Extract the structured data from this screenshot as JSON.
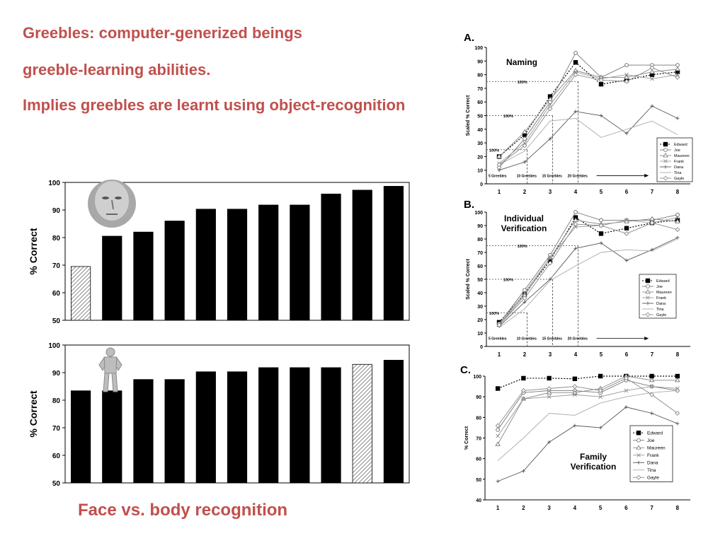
{
  "bullets": [
    "Greebles: computer-generized beings",
    "greeble-learning abilities.",
    "Implies greebles are learnt using object-recognition"
  ],
  "caption": "Face vs. body recognition",
  "colors": {
    "heading": "#c0504d",
    "bar": "#000000",
    "hatch": "#888888"
  },
  "icons": [
    "face-photo",
    "body-figure"
  ],
  "chart_data": [
    {
      "id": "face",
      "type": "bar",
      "ylabel": "% Correct",
      "ylim": [
        50,
        100
      ],
      "yticks": [
        50,
        60,
        70,
        80,
        90,
        100
      ],
      "values": [
        69.5,
        80.5,
        82,
        86,
        90.3,
        90.3,
        91.8,
        91.8,
        95.8,
        97.2,
        98.6
      ],
      "hatched_index": 0
    },
    {
      "id": "body",
      "type": "bar",
      "ylabel": "% Correct",
      "ylim": [
        50,
        100
      ],
      "yticks": [
        50,
        60,
        70,
        80,
        90,
        100
      ],
      "values": [
        83.4,
        83.4,
        87.5,
        87.5,
        90.3,
        90.3,
        91.8,
        91.8,
        91.8,
        93,
        94.5
      ],
      "hatched_index": 9
    },
    {
      "id": "A",
      "type": "line",
      "panel_letter": "A.",
      "title": "Naming",
      "ylabel": "Scaled % Correct",
      "ylim": [
        0,
        100
      ],
      "yticks": [
        0,
        10,
        20,
        30,
        40,
        50,
        60,
        70,
        80,
        90,
        100
      ],
      "x": [
        1,
        2,
        3,
        4,
        5,
        6,
        7,
        8
      ],
      "legend_position": "lower-right",
      "series": [
        {
          "name": "Edward",
          "values": [
            20,
            36,
            64,
            89,
            73,
            76,
            80,
            82
          ]
        },
        {
          "name": "Joe",
          "values": [
            12,
            33,
            60,
            96,
            78,
            87,
            87,
            87
          ]
        },
        {
          "name": "Maureen",
          "values": [
            20,
            38,
            62,
            83,
            78,
            78,
            82,
            84
          ]
        },
        {
          "name": "Frank",
          "values": [
            15,
            30,
            58,
            82,
            77,
            80,
            77,
            80
          ]
        },
        {
          "name": "Dana",
          "values": [
            10,
            16,
            33,
            53,
            50,
            37,
            57,
            48
          ]
        },
        {
          "name": "Tina",
          "values": [
            14,
            24,
            46,
            48,
            34,
            40,
            46,
            36
          ]
        },
        {
          "name": "Gayle",
          "values": [
            14,
            28,
            55,
            80,
            76,
            75,
            85,
            78
          ]
        }
      ],
      "refs": [
        {
          "label": "100%",
          "y": 75,
          "x_end": 3.6
        },
        {
          "label": "100%",
          "y": 50,
          "x_end": 2.6
        },
        {
          "label": "100%",
          "y": 25,
          "x_end": 1.6
        }
      ],
      "phases": [
        "5 Greebles",
        "10 Greebles",
        "15 Greebles",
        "20 Greebles"
      ]
    },
    {
      "id": "B",
      "type": "line",
      "panel_letter": "B.",
      "title": "Individual Verification",
      "ylabel": "Scaled % Correct",
      "ylim": [
        0,
        100
      ],
      "yticks": [
        0,
        10,
        20,
        30,
        40,
        50,
        60,
        70,
        80,
        90,
        100
      ],
      "x": [
        1,
        2,
        3,
        4,
        5,
        6,
        7,
        8
      ],
      "legend_position": "lower-right",
      "series": [
        {
          "name": "Edward",
          "values": [
            18,
            39,
            64,
            96,
            84,
            88,
            92,
            94
          ]
        },
        {
          "name": "Joe",
          "values": [
            17,
            42,
            68,
            100,
            94,
            94,
            94,
            98
          ]
        },
        {
          "name": "Maureen",
          "values": [
            16,
            38,
            66,
            94,
            91,
            93,
            95,
            93
          ]
        },
        {
          "name": "Frank",
          "values": [
            16,
            40,
            66,
            89,
            90,
            94,
            92,
            96
          ]
        },
        {
          "name": "Dana",
          "values": [
            15,
            33,
            50,
            73,
            77,
            64,
            72,
            81
          ]
        },
        {
          "name": "Tina",
          "values": [
            14,
            28,
            49,
            60,
            70,
            72,
            71,
            80
          ]
        },
        {
          "name": "Gayle",
          "values": [
            16,
            36,
            62,
            91,
            90,
            84,
            92,
            87
          ]
        }
      ],
      "refs": [
        {
          "label": "100%",
          "y": 75,
          "x_end": 3.6
        },
        {
          "label": "100%",
          "y": 50,
          "x_end": 2.6
        },
        {
          "label": "100%",
          "y": 25,
          "x_end": 1.6
        }
      ],
      "phases": [
        "5 Greebles",
        "10 Greebles",
        "15 Greebles",
        "20 Greebles"
      ]
    },
    {
      "id": "C",
      "type": "line",
      "panel_letter": "C.",
      "title": "Family Verification",
      "ylabel": "% Correct",
      "ylim": [
        40,
        100
      ],
      "yticks": [
        40,
        50,
        60,
        70,
        80,
        90,
        100
      ],
      "x": [
        1,
        2,
        3,
        4,
        5,
        6,
        7,
        8
      ],
      "legend_position": "mid-right",
      "series": [
        {
          "name": "Edward",
          "values": [
            94,
            99,
            99,
            98.7,
            100,
            100,
            100,
            100
          ]
        },
        {
          "name": "Joe",
          "values": [
            74,
            92,
            93,
            93,
            92,
            98,
            95,
            93
          ]
        },
        {
          "name": "Maureen",
          "values": [
            67,
            89,
            92,
            92,
            94,
            100,
            98,
            98
          ]
        },
        {
          "name": "Frank",
          "values": [
            71,
            89,
            90,
            91,
            90,
            93,
            95,
            94
          ]
        },
        {
          "name": "Dana",
          "values": [
            49,
            54,
            68,
            76,
            75,
            85,
            82,
            77
          ]
        },
        {
          "name": "Tina",
          "values": [
            59,
            70,
            82,
            81,
            87,
            90,
            92,
            93
          ]
        },
        {
          "name": "Gayle",
          "values": [
            76,
            93,
            94,
            95,
            93,
            99,
            91,
            82
          ]
        }
      ]
    }
  ]
}
